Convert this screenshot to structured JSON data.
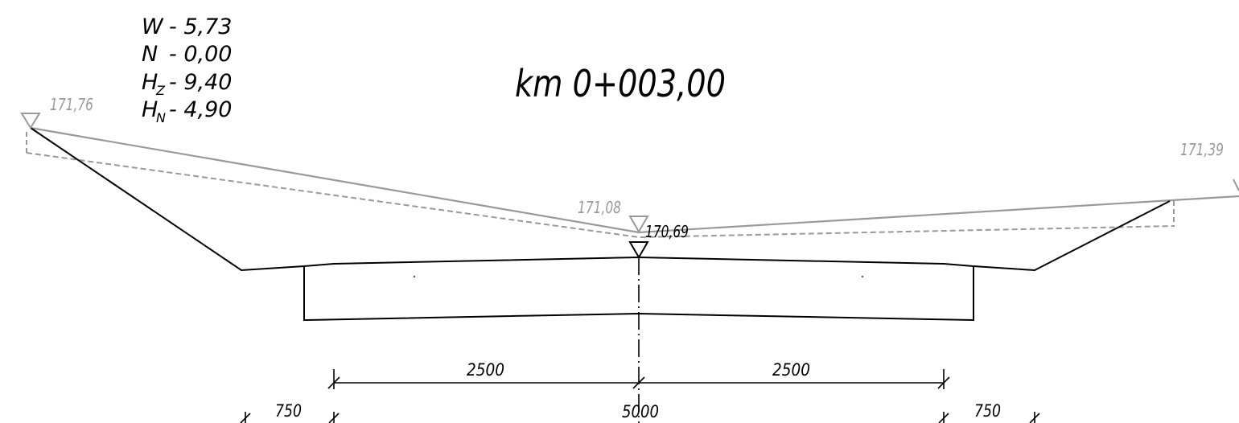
{
  "title": "km 0+003,00",
  "parameters": {
    "W": {
      "label": "W",
      "value": "- 5,73"
    },
    "N": {
      "label": "N",
      "value": "- 0,00"
    },
    "Hz": {
      "label": "H",
      "sub": "Z",
      "value": "- 9,40"
    },
    "Hn": {
      "label": "H",
      "sub": "N",
      "value": "- 4,90"
    }
  },
  "elevations": {
    "left_terrain": "171,76",
    "center_terrain": "171,08",
    "right_terrain": "171,39",
    "center_design": "170,69"
  },
  "dimensions": {
    "half_left": "2500",
    "half_right": "2500",
    "total": "5000",
    "edge_left": "750",
    "edge_right": "750"
  },
  "colors": {
    "terrain_line": "#999999",
    "design_line": "#000000"
  }
}
